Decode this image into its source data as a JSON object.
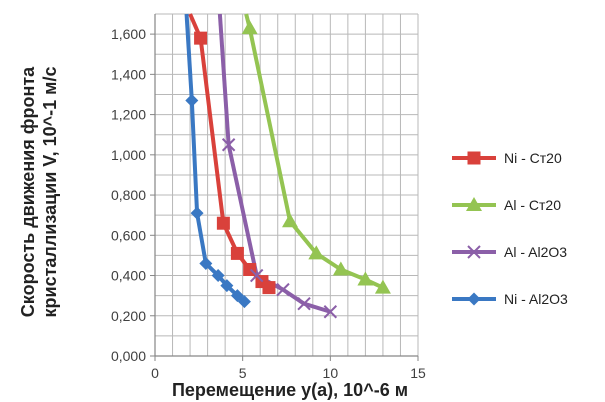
{
  "chart_data": {
    "type": "scatter",
    "xlabel": "Перемещение y(a), 10^-6 м",
    "ylabel_line1": "Скорость движения фронта",
    "ylabel_line2": "кристаллизации V, 10^-1 м/с",
    "xlim": [
      0,
      15
    ],
    "ylim": [
      0,
      1.7
    ],
    "x_ticks": [
      0,
      5,
      10,
      15
    ],
    "x_tick_labels": [
      "0",
      "5",
      "10",
      "15"
    ],
    "y_ticks": [
      0,
      0.2,
      0.4,
      0.6,
      0.8,
      1.0,
      1.2,
      1.4,
      1.6
    ],
    "y_tick_labels": [
      "0,000",
      "0,200",
      "0,400",
      "0,600",
      "0,800",
      "1,000",
      "1,200",
      "1,400",
      "1,600"
    ],
    "grid": true,
    "legend_position": "right",
    "series": [
      {
        "name": "Ni - Ст20",
        "color": "#d9413b",
        "marker": "square",
        "x": [
          2.6,
          3.9,
          4.7,
          5.4,
          6.1,
          6.5
        ],
        "y": [
          1.58,
          0.66,
          0.51,
          0.43,
          0.37,
          0.34
        ],
        "line_x": [
          2.6,
          2.0
        ],
        "line_y": [
          1.58,
          1.7
        ]
      },
      {
        "name": "Al - Ст20",
        "color": "#94c452",
        "marker": "triangle",
        "x": [
          5.4,
          7.7,
          9.2,
          10.6,
          12.0,
          13.0
        ],
        "y": [
          1.63,
          0.67,
          0.51,
          0.43,
          0.38,
          0.34
        ],
        "line_x": [
          5.4,
          5.2
        ],
        "line_y": [
          1.63,
          1.7
        ]
      },
      {
        "name": "Al - Al2O3",
        "color": "#8b5fa8",
        "marker": "x",
        "x": [
          4.2,
          5.8,
          7.3,
          8.5,
          10.0
        ],
        "y": [
          1.05,
          0.4,
          0.33,
          0.26,
          0.22
        ],
        "line_x": [
          4.2,
          3.7
        ],
        "line_y": [
          1.05,
          1.7
        ]
      },
      {
        "name": "Ni - Al2O3",
        "color": "#3a78c3",
        "marker": "diamond",
        "x": [
          2.1,
          2.4,
          2.9,
          3.6,
          4.1,
          4.7,
          5.1
        ],
        "y": [
          1.27,
          0.71,
          0.46,
          0.4,
          0.35,
          0.3,
          0.27
        ],
        "line_x": [
          2.1,
          1.8
        ],
        "line_y": [
          1.27,
          1.7
        ]
      }
    ]
  }
}
